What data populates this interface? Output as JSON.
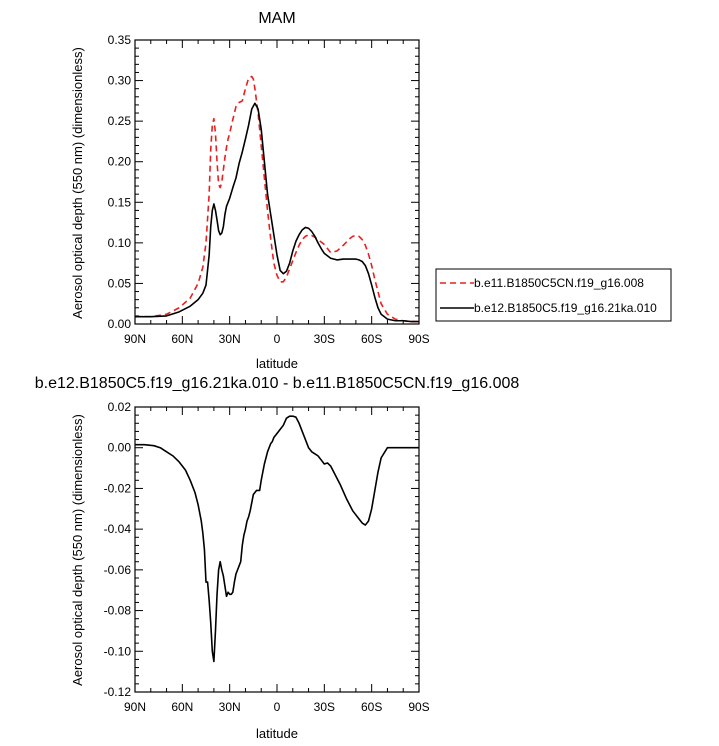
{
  "top_panel": {
    "title": "MAM",
    "xlabel": "latitude",
    "ylabel": "Aerosol optical depth (550 nm) (dimensionless)"
  },
  "bottom_panel": {
    "title": "b.e12.B1850C5.f19_g16.21ka.010 - b.e11.B1850C5CN.f19_g16.008",
    "xlabel": "latitude",
    "ylabel": "Aerosol optical depth (550 nm) (dimensionless)"
  },
  "legend": {
    "entries": [
      {
        "label": "b.e11.B1850C5CN.f19_g16.008",
        "color": "#e8201f",
        "dash": "dashed"
      },
      {
        "label": "b.e12.B1850C5.f19_g16.21ka.010",
        "color": "#000000",
        "dash": "solid"
      }
    ],
    "placement": "right"
  },
  "chart_data": [
    {
      "type": "line",
      "title": "MAM",
      "xlabel": "latitude",
      "ylabel": "Aerosol optical depth (550 nm) (dimensionless)",
      "xlim": [
        90,
        -90
      ],
      "ylim": [
        0,
        0.35
      ],
      "x_ticks": [
        90,
        60,
        30,
        0,
        -30,
        -60,
        -90
      ],
      "x_tick_labels": [
        "90N",
        "60N",
        "30N",
        "0",
        "30S",
        "60S",
        "90S"
      ],
      "y_ticks": [
        0,
        0.05,
        0.1,
        0.15,
        0.2,
        0.25,
        0.3,
        0.35
      ],
      "y_tick_labels": [
        "0.00",
        "0.05",
        "0.10",
        "0.15",
        "0.20",
        "0.25",
        "0.30",
        "0.35"
      ],
      "grid": false,
      "series": [
        {
          "name": "b.e11.B1850C5CN.f19_g16.008",
          "color": "#e8201f",
          "dash": "dashed",
          "x": [
            90,
            80,
            70,
            62,
            55,
            50,
            47,
            45,
            43,
            42,
            41,
            40,
            39,
            38,
            37,
            36,
            35,
            34,
            33,
            32,
            31,
            30,
            28,
            26,
            24,
            22,
            20,
            18,
            16,
            15,
            14,
            12,
            10,
            8,
            6,
            4,
            2,
            0,
            -2,
            -4,
            -6,
            -8,
            -10,
            -12,
            -14,
            -16,
            -18,
            -20,
            -22,
            -24,
            -26,
            -28,
            -30,
            -34,
            -38,
            -42,
            -46,
            -48,
            -50,
            -52,
            -54,
            -56,
            -58,
            -60,
            -62,
            -64,
            -66,
            -70,
            -75,
            -80,
            -85,
            -90
          ],
          "y": [
            0.009,
            0.009,
            0.012,
            0.02,
            0.032,
            0.05,
            0.07,
            0.1,
            0.16,
            0.215,
            0.245,
            0.253,
            0.235,
            0.2,
            0.172,
            0.168,
            0.175,
            0.19,
            0.205,
            0.218,
            0.228,
            0.235,
            0.252,
            0.268,
            0.273,
            0.275,
            0.29,
            0.303,
            0.305,
            0.302,
            0.29,
            0.26,
            0.22,
            0.18,
            0.14,
            0.105,
            0.075,
            0.06,
            0.052,
            0.052,
            0.058,
            0.068,
            0.078,
            0.088,
            0.097,
            0.104,
            0.108,
            0.11,
            0.109,
            0.107,
            0.104,
            0.101,
            0.098,
            0.088,
            0.09,
            0.097,
            0.105,
            0.108,
            0.109,
            0.108,
            0.104,
            0.097,
            0.086,
            0.072,
            0.055,
            0.04,
            0.025,
            0.012,
            0.006,
            0.004,
            0.003,
            0.003
          ]
        },
        {
          "name": "b.e12.B1850C5.f19_g16.21ka.010",
          "color": "#000000",
          "dash": "solid",
          "x": [
            90,
            80,
            70,
            62,
            55,
            50,
            47,
            45,
            43,
            42,
            41,
            40,
            39,
            38,
            37,
            36,
            35,
            34,
            33,
            32,
            31,
            30,
            28,
            26,
            24,
            22,
            20,
            18,
            16,
            14,
            12,
            10,
            8,
            6,
            4,
            2,
            0,
            -2,
            -4,
            -6,
            -8,
            -10,
            -12,
            -14,
            -16,
            -18,
            -20,
            -22,
            -24,
            -26,
            -28,
            -30,
            -34,
            -38,
            -42,
            -46,
            -50,
            -52,
            -54,
            -56,
            -58,
            -60,
            -62,
            -64,
            -66,
            -70,
            -75,
            -80,
            -85,
            -90
          ],
          "y": [
            0.009,
            0.009,
            0.01,
            0.015,
            0.022,
            0.03,
            0.038,
            0.048,
            0.085,
            0.12,
            0.14,
            0.148,
            0.14,
            0.128,
            0.115,
            0.11,
            0.112,
            0.12,
            0.135,
            0.145,
            0.15,
            0.155,
            0.168,
            0.18,
            0.198,
            0.212,
            0.228,
            0.245,
            0.265,
            0.272,
            0.265,
            0.24,
            0.2,
            0.16,
            0.135,
            0.11,
            0.085,
            0.066,
            0.062,
            0.065,
            0.075,
            0.09,
            0.102,
            0.11,
            0.116,
            0.119,
            0.118,
            0.114,
            0.108,
            0.1,
            0.093,
            0.087,
            0.081,
            0.079,
            0.08,
            0.08,
            0.08,
            0.079,
            0.077,
            0.072,
            0.062,
            0.048,
            0.033,
            0.02,
            0.012,
            0.006,
            0.004,
            0.004,
            0.003,
            0.003
          ]
        }
      ]
    },
    {
      "type": "line",
      "title": "b.e12.B1850C5.f19_g16.21ka.010 - b.e11.B1850C5CN.f19_g16.008",
      "xlabel": "latitude",
      "ylabel": "Aerosol optical depth (550 nm) (dimensionless)",
      "xlim": [
        90,
        -90
      ],
      "ylim": [
        -0.12,
        0.02
      ],
      "x_ticks": [
        90,
        60,
        30,
        0,
        -30,
        -60,
        -90
      ],
      "x_tick_labels": [
        "90N",
        "60N",
        "30N",
        "0",
        "30S",
        "60S",
        "90S"
      ],
      "y_ticks": [
        -0.12,
        -0.1,
        -0.08,
        -0.06,
        -0.04,
        -0.02,
        0,
        0.02
      ],
      "y_tick_labels": [
        "-0.12",
        "-0.10",
        "-0.08",
        "-0.06",
        "-0.04",
        "-0.02",
        "0.00",
        "0.02"
      ],
      "grid": false,
      "series": [
        {
          "name": "",
          "color": "#000000",
          "dash": "solid",
          "x": [
            90,
            84,
            78,
            74,
            70,
            66,
            62,
            58,
            55,
            52,
            50,
            48,
            47,
            46,
            45,
            44,
            43,
            42,
            41,
            40,
            39,
            38,
            37,
            36,
            35,
            34,
            33,
            32,
            31,
            30,
            29,
            28,
            27,
            26,
            25,
            24,
            23,
            22,
            21,
            20,
            19,
            18,
            17,
            16,
            15,
            14,
            13,
            12,
            11,
            10,
            9,
            8,
            7,
            6,
            5,
            4,
            3,
            2,
            1,
            0,
            -2,
            -4,
            -6,
            -8,
            -10,
            -12,
            -14,
            -16,
            -18,
            -20,
            -22,
            -24,
            -26,
            -28,
            -29,
            -30,
            -32,
            -34,
            -36,
            -38,
            -40,
            -44,
            -48,
            -52,
            -54,
            -56,
            -58,
            -60,
            -62,
            -64,
            -66,
            -70,
            -75,
            -80,
            -85,
            -90
          ],
          "y": [
            0.0015,
            0.0015,
            0.001,
            0.0,
            -0.002,
            -0.004,
            -0.007,
            -0.011,
            -0.016,
            -0.022,
            -0.028,
            -0.036,
            -0.042,
            -0.05,
            -0.066,
            -0.066,
            -0.075,
            -0.086,
            -0.1,
            -0.105,
            -0.09,
            -0.072,
            -0.06,
            -0.056,
            -0.06,
            -0.063,
            -0.068,
            -0.073,
            -0.071,
            -0.072,
            -0.072,
            -0.071,
            -0.066,
            -0.062,
            -0.06,
            -0.058,
            -0.056,
            -0.048,
            -0.043,
            -0.04,
            -0.036,
            -0.034,
            -0.031,
            -0.027,
            -0.023,
            -0.022,
            -0.021,
            -0.021,
            -0.021,
            -0.016,
            -0.012,
            -0.008,
            -0.005,
            -0.002,
            0.0,
            0.002,
            0.003,
            0.005,
            0.006,
            0.007,
            0.009,
            0.011,
            0.0145,
            0.0155,
            0.0155,
            0.015,
            0.012,
            0.008,
            0.004,
            0.0,
            -0.002,
            -0.003,
            -0.004,
            -0.006,
            -0.007,
            -0.008,
            -0.0075,
            -0.009,
            -0.012,
            -0.015,
            -0.018,
            -0.025,
            -0.031,
            -0.035,
            -0.037,
            -0.038,
            -0.036,
            -0.03,
            -0.021,
            -0.012,
            -0.005,
            0.0,
            0.0,
            0.0,
            0.0,
            0.0
          ]
        }
      ]
    }
  ]
}
